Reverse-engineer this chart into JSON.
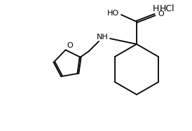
{
  "background_color": "#ffffff",
  "line_color": "#000000",
  "text_color": "#000000",
  "hcl_text": "HCl",
  "h_text": "H",
  "ho_text": "HO",
  "o_text": "O",
  "nh_text": "NH",
  "o_ring_text": "O",
  "figsize": [
    2.74,
    1.87
  ],
  "dpi": 100,
  "lw": 1.3
}
